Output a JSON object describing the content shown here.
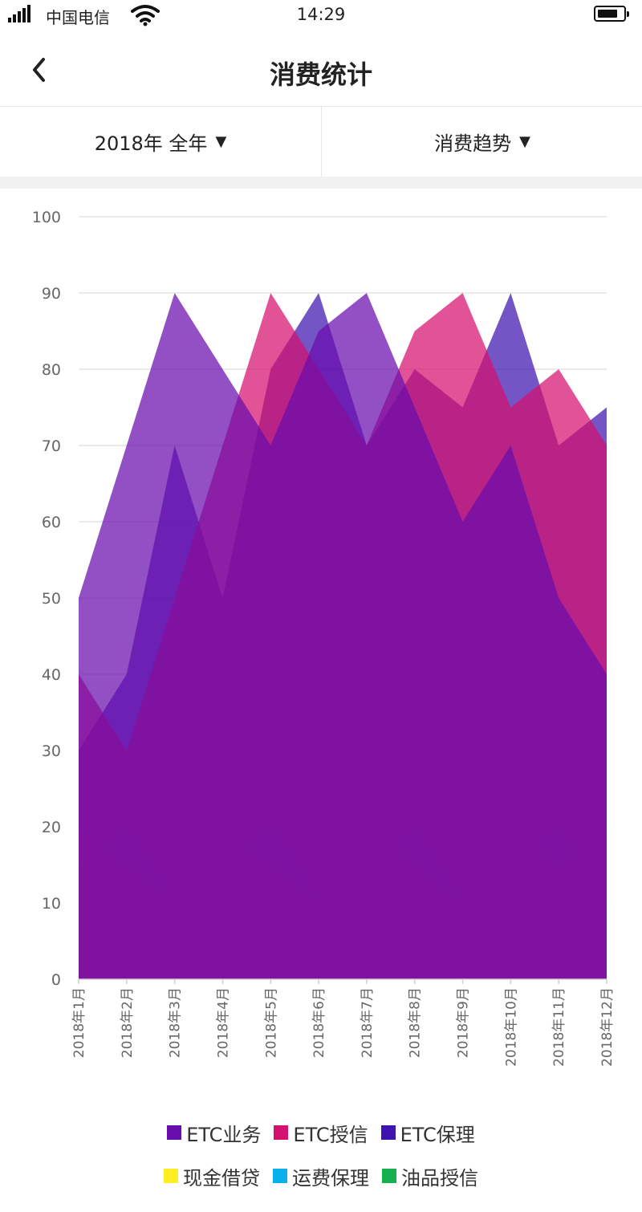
{
  "status": {
    "carrier": "中国电信",
    "time": "14:29"
  },
  "header": {
    "title": "消费统计",
    "back_icon": "chevron-left-icon"
  },
  "filters": {
    "period_label": "2018年 全年",
    "mode_label": "消费趋势",
    "caret": "▼"
  },
  "chart_data": {
    "type": "area",
    "x": [
      "2018年1月",
      "2018年2月",
      "2018年3月",
      "2018年4月",
      "2018年5月",
      "2018年6月",
      "2018年7月",
      "2018年8月",
      "2018年9月",
      "2018年10月",
      "2018年11月",
      "2018年12月"
    ],
    "ylim": [
      0,
      100
    ],
    "yticks": [
      0,
      10,
      20,
      30,
      40,
      50,
      60,
      70,
      80,
      90,
      100
    ],
    "grid": true,
    "legend_position": "bottom",
    "series": [
      {
        "name": "ETC业务",
        "color": "#6a0dad",
        "values": [
          50,
          70,
          90,
          80,
          70,
          85,
          90,
          75,
          60,
          70,
          50,
          40
        ]
      },
      {
        "name": "ETC授信",
        "color": "#d6106e",
        "values": [
          40,
          30,
          50,
          70,
          90,
          80,
          70,
          85,
          90,
          75,
          80,
          70
        ]
      },
      {
        "name": "ETC保理",
        "color": "#3d14b0",
        "values": [
          30,
          40,
          70,
          50,
          80,
          90,
          70,
          80,
          75,
          90,
          70,
          75
        ]
      },
      {
        "name": "现金借贷",
        "color": "#ffee22",
        "values": [
          20,
          15,
          10,
          20,
          15,
          10,
          20,
          15,
          10,
          20,
          15,
          20
        ]
      },
      {
        "name": "运费保理",
        "color": "#0ab0ee",
        "values": [
          15,
          20,
          10,
          15,
          20,
          10,
          15,
          20,
          10,
          15,
          20,
          10
        ]
      },
      {
        "name": "油品授信",
        "color": "#16b04f",
        "values": [
          0,
          0,
          0,
          0,
          0,
          0,
          0,
          0,
          0,
          0,
          0,
          0
        ]
      }
    ]
  }
}
